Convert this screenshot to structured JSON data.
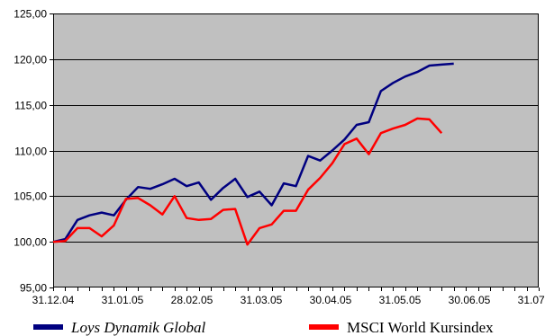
{
  "chart_data": {
    "type": "line",
    "title": "",
    "xlabel": "",
    "ylabel": "",
    "ylim": [
      95,
      125
    ],
    "yticks": [
      "95,00",
      "100,00",
      "105,00",
      "110,00",
      "115,00",
      "120,00",
      "125,00"
    ],
    "xticks": [
      "31.12.04",
      "31.01.05",
      "28.02.05",
      "31.03.05",
      "30.04.05",
      "31.05.05",
      "30.06.05",
      "31.07.05"
    ],
    "grid": "horizontal",
    "plot_background": "#c0c0c0",
    "legend": "bottom",
    "x_points": 40,
    "series": [
      {
        "name": "Loys Dynamik Global",
        "color": "#000080",
        "italic": true,
        "values": [
          100.0,
          100.3,
          102.4,
          102.9,
          103.2,
          102.9,
          104.6,
          106.0,
          105.8,
          106.3,
          106.9,
          106.1,
          106.5,
          104.6,
          105.9,
          106.9,
          104.9,
          105.5,
          104.0,
          106.4,
          106.1,
          109.4,
          108.9,
          110.0,
          111.2,
          112.8,
          113.1,
          116.5,
          117.4,
          118.1,
          118.6,
          119.3,
          119.4,
          119.5
        ]
      },
      {
        "name": "MSCI World Kursindex",
        "color": "#ff0000",
        "italic": false,
        "values": [
          100.0,
          100.1,
          101.5,
          101.5,
          100.6,
          101.8,
          104.7,
          104.8,
          104.0,
          103.0,
          105.0,
          102.6,
          102.4,
          102.5,
          103.5,
          103.6,
          99.7,
          101.5,
          101.9,
          103.4,
          103.4,
          105.7,
          107.0,
          108.6,
          110.7,
          111.3,
          109.6,
          111.9,
          112.4,
          112.8,
          113.5,
          113.4,
          111.9
        ]
      }
    ]
  }
}
